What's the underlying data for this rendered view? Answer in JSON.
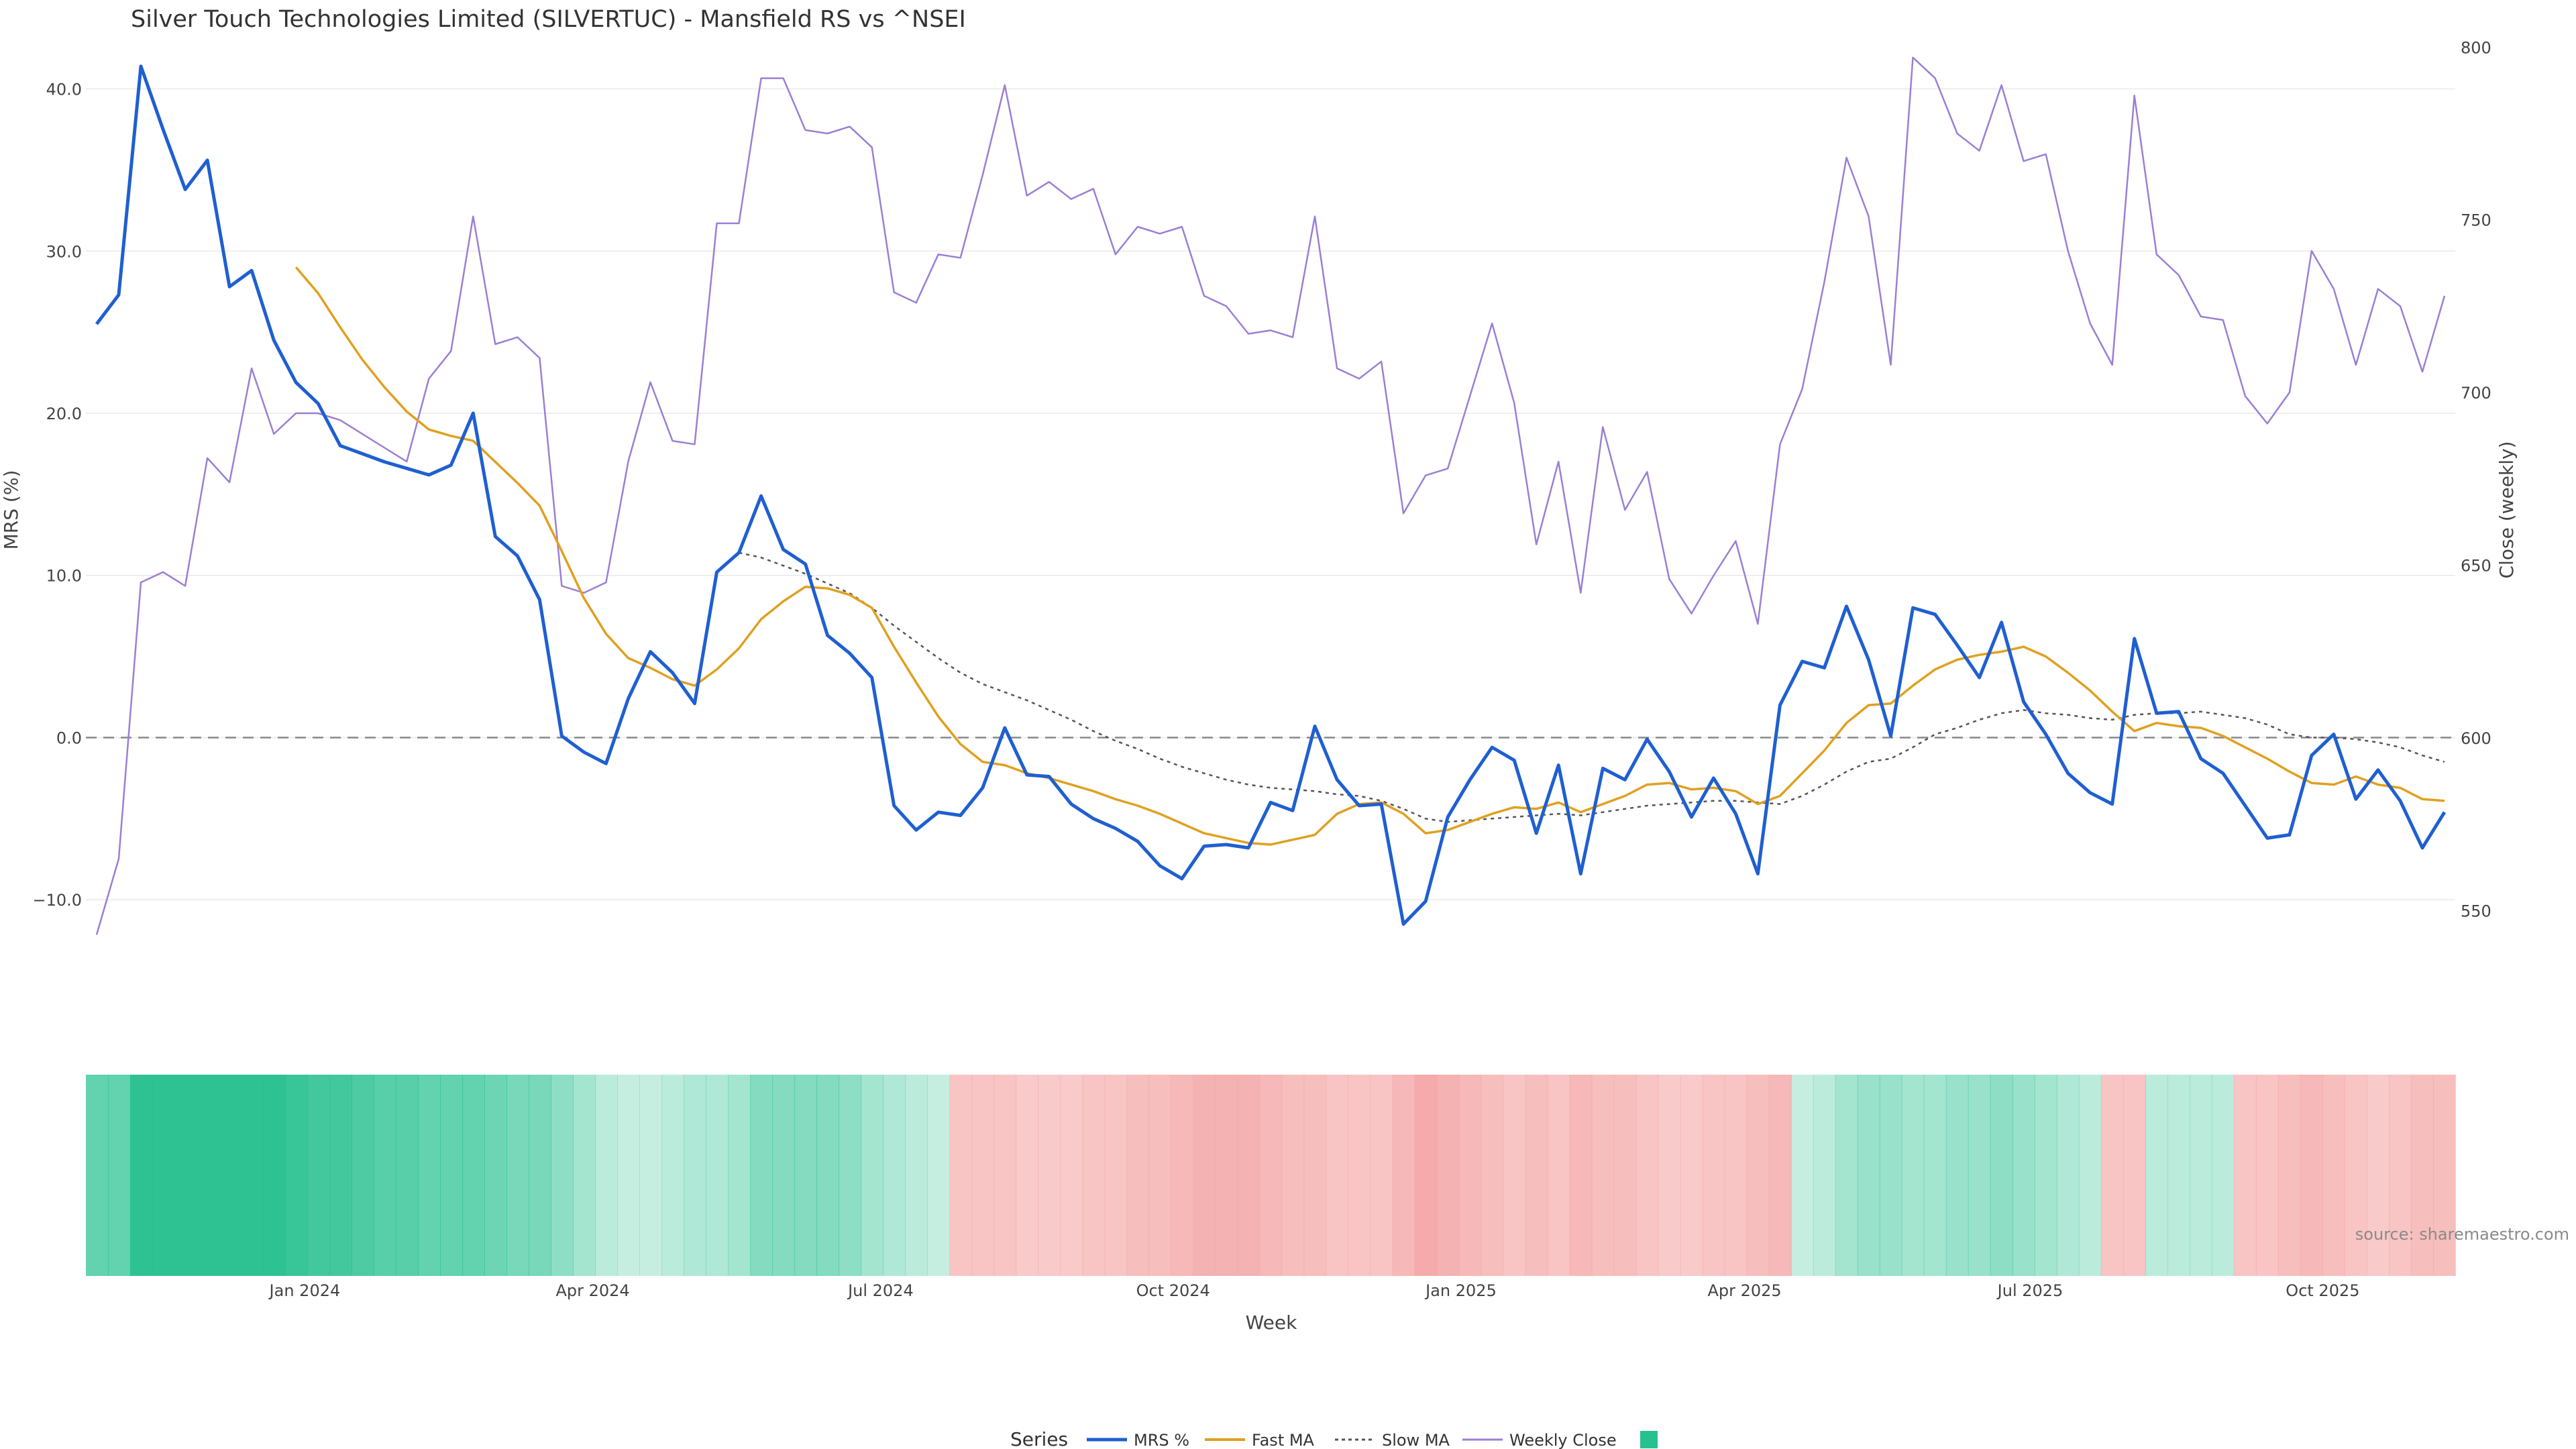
{
  "chart_data": {
    "type": "line",
    "title": "Silver Touch Technologies Limited (SILVERTUC) - Mansfield RS vs ^NSEI",
    "xlabel": "Week",
    "ylabel_left": "MRS (%)",
    "ylabel_right": "Close (weekly)",
    "ylim_left": [
      -14.5,
      43
    ],
    "ylim_right": [
      532,
      802
    ],
    "y_ticks_left": [
      "40.0",
      "30.0",
      "20.0",
      "10.0",
      "0.0",
      "−10.0"
    ],
    "y_ticks_right": [
      "800",
      "750",
      "700",
      "650",
      "600",
      "550"
    ],
    "x_ticks": [
      "Jan 2024",
      "Apr 2024",
      "Jul 2024",
      "Oct 2024",
      "Jan 2025",
      "Apr 2025",
      "Jul 2025",
      "Oct 2025"
    ],
    "zero_line": true,
    "grid": "horizontal",
    "legend_title": "Series",
    "legend_placement": "bottom-center",
    "source_note": "source: sharemaestro.com",
    "colors": {
      "mrs": "#1f5fd1",
      "fast_ma": "#e0a020",
      "slow_ma": "#555555",
      "weekly_close": "#9b7fd4",
      "heat_positive": "#27c08f",
      "heat_negative": "#f4a7a7"
    },
    "series": [
      {
        "name": "MRS %",
        "values": [
          25.5,
          27.3,
          41.4,
          37.5,
          33.8,
          35.6,
          27.8,
          28.8,
          24.5,
          21.9,
          20.6,
          18.0,
          17.5,
          17.0,
          16.6,
          16.2,
          16.8,
          20.0,
          12.4,
          11.2,
          8.5,
          0.1,
          -0.9,
          -1.6,
          2.4,
          5.3,
          4.0,
          2.1,
          10.2,
          11.4,
          14.9,
          11.6,
          10.7,
          6.3,
          5.2,
          3.7,
          -4.2,
          -5.7,
          -4.6,
          -4.8,
          -3.1,
          0.6,
          -2.3,
          -2.4,
          -4.1,
          -5.0,
          -5.6,
          -6.4,
          -7.9,
          -8.7,
          -6.7,
          -6.6,
          -6.8,
          -4.0,
          -4.5,
          0.7,
          -2.6,
          -4.2,
          -4.1,
          -11.5,
          -10.1,
          -4.9,
          -2.6,
          -0.6,
          -1.4,
          -5.9,
          -1.7,
          -8.4,
          -1.9,
          -2.6,
          -0.1,
          -2.1,
          -4.9,
          -2.5,
          -4.7,
          -8.4,
          2.0,
          4.7,
          4.3,
          8.1,
          4.8,
          0.1,
          8.0,
          7.6,
          5.7,
          3.7,
          7.1,
          2.2,
          0.2,
          -2.2,
          -3.4,
          -4.1,
          6.1,
          1.5,
          1.6,
          -1.3,
          -2.2,
          -4.2,
          -6.2,
          -6.0,
          -1.1,
          0.2,
          -3.8,
          -2.0,
          -3.9,
          -6.8,
          -4.6
        ]
      },
      {
        "name": "Fast MA",
        "values": [
          null,
          null,
          null,
          null,
          null,
          null,
          null,
          null,
          null,
          29.0,
          27.4,
          25.3,
          23.3,
          21.6,
          20.1,
          19.0,
          18.6,
          18.3,
          17.0,
          15.7,
          14.3,
          11.5,
          8.6,
          6.4,
          4.9,
          4.3,
          3.6,
          3.2,
          4.2,
          5.5,
          7.3,
          8.4,
          9.3,
          9.2,
          8.8,
          8.0,
          5.6,
          3.4,
          1.3,
          -0.4,
          -1.5,
          -1.7,
          -2.2,
          -2.5,
          -2.9,
          -3.3,
          -3.8,
          -4.2,
          -4.7,
          -5.3,
          -5.9,
          -6.2,
          -6.5,
          -6.6,
          -6.3,
          -6.0,
          -4.7,
          -4.1,
          -4.0,
          -4.7,
          -5.9,
          -5.7,
          -5.2,
          -4.7,
          -4.3,
          -4.4,
          -4.0,
          -4.6,
          -4.1,
          -3.6,
          -2.9,
          -2.8,
          -3.2,
          -3.1,
          -3.3,
          -4.1,
          -3.6,
          -2.2,
          -0.8,
          0.9,
          2.0,
          2.1,
          3.2,
          4.2,
          4.8,
          5.1,
          5.3,
          5.6,
          5.0,
          4.0,
          2.9,
          1.6,
          0.4,
          0.9,
          0.7,
          0.6,
          0.1,
          -0.6,
          -1.3,
          -2.1,
          -2.8,
          -2.9,
          -2.4,
          -2.9,
          -3.1,
          -3.8,
          -3.9
        ]
      },
      {
        "name": "Slow MA",
        "values": [
          null,
          null,
          null,
          null,
          null,
          null,
          null,
          null,
          null,
          null,
          null,
          null,
          null,
          null,
          null,
          null,
          null,
          null,
          null,
          null,
          null,
          null,
          null,
          null,
          null,
          null,
          null,
          null,
          null,
          11.4,
          11.1,
          10.6,
          10.1,
          9.5,
          8.9,
          8.0,
          6.9,
          5.9,
          4.9,
          4.0,
          3.3,
          2.8,
          2.3,
          1.7,
          1.1,
          0.4,
          -0.2,
          -0.7,
          -1.3,
          -1.8,
          -2.2,
          -2.6,
          -2.9,
          -3.1,
          -3.2,
          -3.3,
          -3.5,
          -3.6,
          -3.9,
          -4.4,
          -5.0,
          -5.2,
          -5.1,
          -5.0,
          -4.9,
          -4.8,
          -4.7,
          -4.8,
          -4.6,
          -4.4,
          -4.2,
          -4.1,
          -4.0,
          -3.9,
          -3.9,
          -4.0,
          -4.1,
          -3.6,
          -2.9,
          -2.1,
          -1.5,
          -1.3,
          -0.6,
          0.2,
          0.6,
          1.1,
          1.5,
          1.7,
          1.5,
          1.4,
          1.2,
          1.1,
          1.4,
          1.5,
          1.5,
          1.6,
          1.4,
          1.2,
          0.8,
          0.2,
          0.0,
          0.0,
          -0.1,
          -0.3,
          -0.6,
          -1.1,
          -1.5
        ]
      },
      {
        "name": "Weekly Close",
        "values": [
          543,
          565,
          645,
          648,
          644,
          681,
          674,
          707,
          688,
          694,
          694,
          692,
          688,
          684,
          680,
          704,
          712,
          751,
          714,
          716,
          710,
          644,
          642,
          645,
          680,
          703,
          686,
          685,
          749,
          749,
          791,
          791,
          776,
          775,
          777,
          771,
          729,
          726,
          740,
          739,
          763,
          789,
          757,
          761,
          756,
          759,
          740,
          748,
          746,
          748,
          728,
          725,
          717,
          718,
          716,
          751,
          707,
          704,
          709,
          665,
          676,
          678,
          699,
          720,
          697,
          656,
          680,
          642,
          690,
          666,
          677,
          646,
          636,
          647,
          657,
          633,
          685,
          701,
          732,
          768,
          751,
          708,
          797,
          791,
          775,
          770,
          789,
          767,
          769,
          741,
          720,
          708,
          786,
          740,
          734,
          722,
          721,
          699,
          691,
          700,
          741,
          730,
          708,
          730,
          725,
          706,
          728
        ]
      },
      {
        "name": "",
        "values": [
          0.6,
          0.6,
          0.85,
          0.85,
          0.85,
          0.85,
          0.85,
          0.85,
          0.85,
          0.8,
          0.75,
          0.75,
          0.7,
          0.65,
          0.65,
          0.6,
          0.6,
          0.6,
          0.55,
          0.5,
          0.5,
          0.4,
          0.3,
          0.2,
          0.15,
          0.15,
          0.2,
          0.25,
          0.25,
          0.3,
          0.45,
          0.45,
          0.45,
          0.45,
          0.4,
          0.3,
          0.25,
          0.2,
          0.15,
          -0.3,
          -0.3,
          -0.3,
          -0.25,
          -0.25,
          -0.25,
          -0.3,
          -0.3,
          -0.35,
          -0.35,
          -0.4,
          -0.45,
          -0.45,
          -0.45,
          -0.4,
          -0.35,
          -0.35,
          -0.3,
          -0.3,
          -0.3,
          -0.4,
          -0.5,
          -0.45,
          -0.4,
          -0.35,
          -0.3,
          -0.35,
          -0.3,
          -0.4,
          -0.35,
          -0.35,
          -0.3,
          -0.25,
          -0.25,
          -0.3,
          -0.3,
          -0.35,
          -0.4,
          0.15,
          0.2,
          0.3,
          0.35,
          0.35,
          0.3,
          0.3,
          0.35,
          0.35,
          0.4,
          0.35,
          0.3,
          0.25,
          0.2,
          -0.3,
          -0.3,
          0.2,
          0.2,
          0.2,
          0.2,
          -0.3,
          -0.3,
          -0.35,
          -0.4,
          -0.35,
          -0.3,
          -0.25,
          -0.3,
          -0.35,
          -0.35
        ]
      }
    ]
  }
}
